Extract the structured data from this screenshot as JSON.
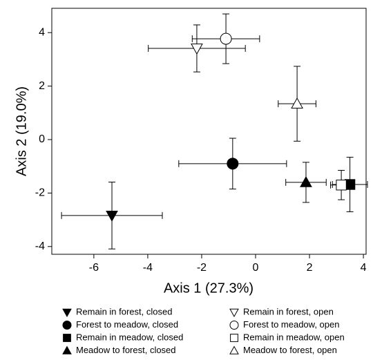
{
  "chart_data": {
    "type": "scatter",
    "xlabel": "Axis 1 (27.3%)",
    "ylabel": "Axis 2 (19.0%)",
    "xlim": [
      -7.56,
      4.1
    ],
    "xticks": [
      -6,
      -4,
      -2,
      0,
      2,
      4
    ],
    "ylim": [
      -4.29,
      4.91
    ],
    "yticks": [
      -4,
      -2,
      0,
      2,
      4
    ],
    "grid": false,
    "legend": "bottom",
    "color": "#000000",
    "series": [
      {
        "name": "Remain in forest, closed",
        "marker": "triangle-down",
        "filled": true,
        "x": [
          -5.33
        ],
        "y": [
          -2.84
        ],
        "xerr": [
          1.87
        ],
        "yerr": [
          1.25
        ]
      },
      {
        "name": "Remain in forest, open",
        "marker": "triangle-down",
        "filled": false,
        "x": [
          -2.18
        ],
        "y": [
          3.41
        ],
        "xerr": [
          1.8
        ],
        "yerr": [
          0.88
        ]
      },
      {
        "name": "Forest to meadow, closed",
        "marker": "circle",
        "filled": true,
        "x": [
          -0.85
        ],
        "y": [
          -0.9
        ],
        "xerr": [
          2.0
        ],
        "yerr": [
          0.95
        ]
      },
      {
        "name": "Forest to meadow, open",
        "marker": "circle",
        "filled": false,
        "x": [
          -1.1
        ],
        "y": [
          3.77
        ],
        "xerr": [
          1.25
        ],
        "yerr": [
          0.93
        ]
      },
      {
        "name": "Remain in meadow, closed",
        "marker": "square",
        "filled": true,
        "x": [
          3.5
        ],
        "y": [
          -1.68
        ],
        "xerr": [
          0.65
        ],
        "yerr": [
          1.02
        ]
      },
      {
        "name": "Remain in meadow, open",
        "marker": "square",
        "filled": false,
        "x": [
          3.18
        ],
        "y": [
          -1.7
        ],
        "xerr": [
          0.4
        ],
        "yerr": [
          0.55
        ]
      },
      {
        "name": "Meadow to forest, closed",
        "marker": "triangle-up",
        "filled": true,
        "x": [
          1.87
        ],
        "y": [
          -1.6
        ],
        "xerr": [
          0.75
        ],
        "yerr": [
          0.75
        ]
      },
      {
        "name": "Meadow to forest, open",
        "marker": "triangle-up",
        "filled": false,
        "x": [
          1.54
        ],
        "y": [
          1.34
        ],
        "xerr": [
          0.7
        ],
        "yerr": [
          1.4
        ]
      }
    ]
  }
}
